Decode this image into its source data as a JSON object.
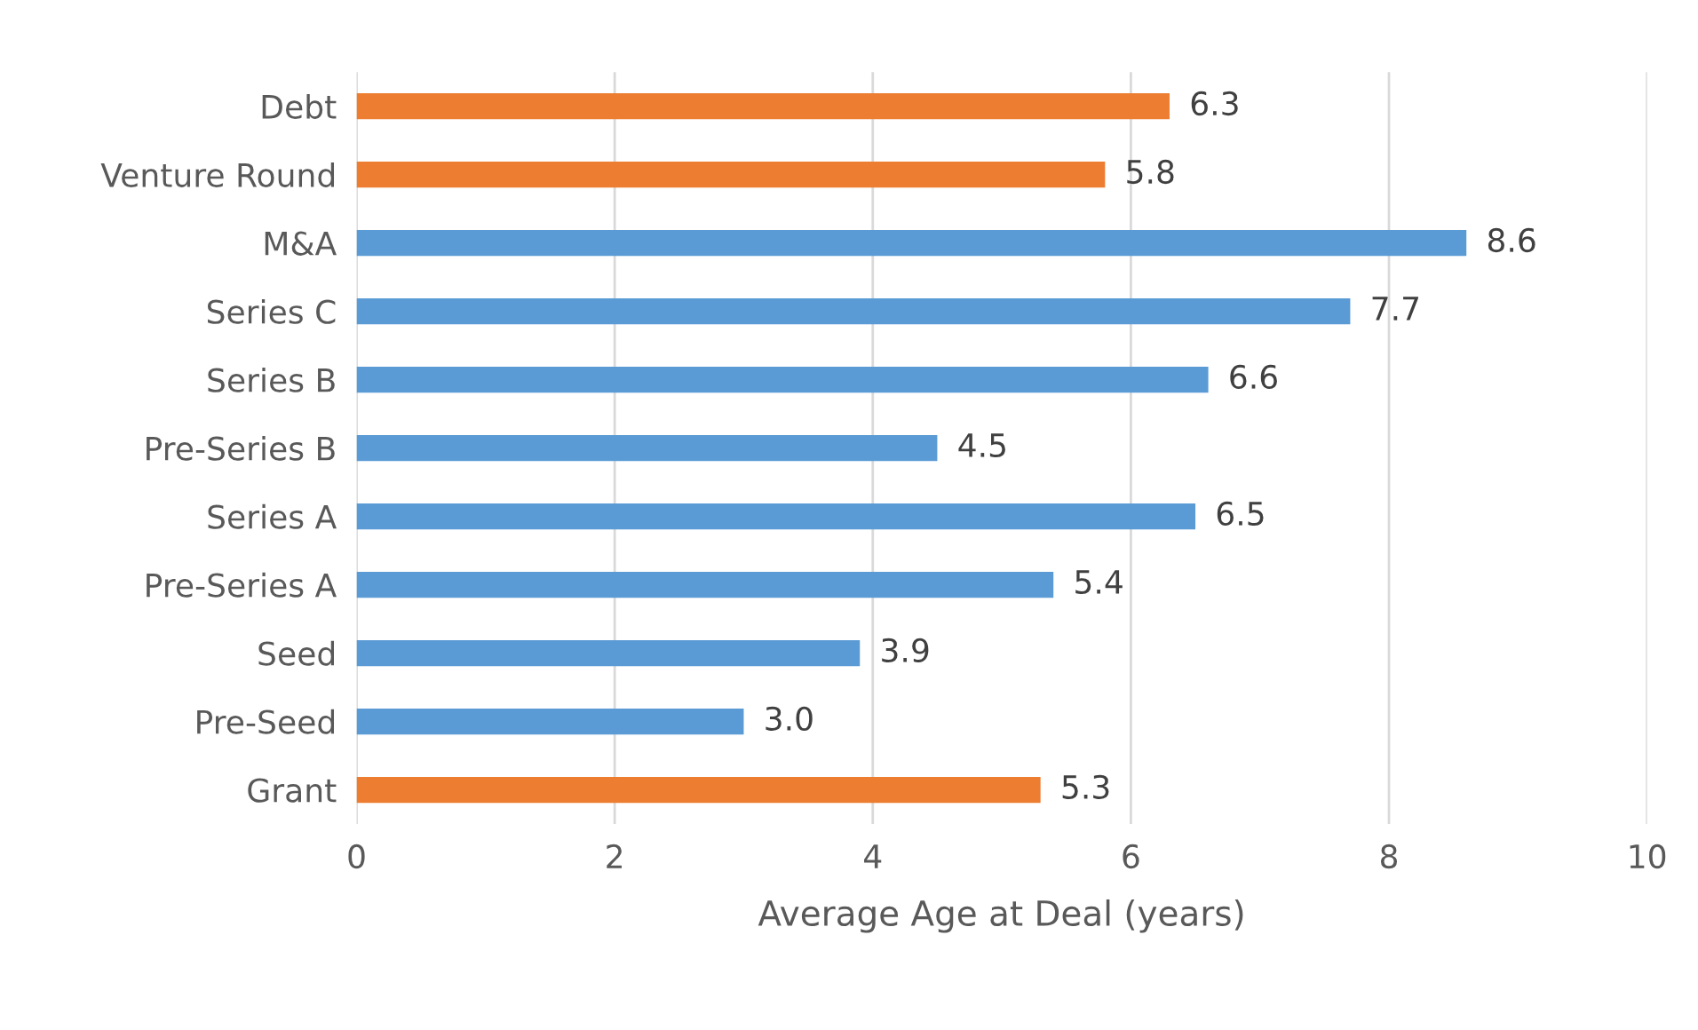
{
  "chart_data": {
    "type": "bar",
    "orientation": "horizontal",
    "xlabel": "Average Age at Deal (years)",
    "categories": [
      "Debt",
      "Venture Round",
      "M&A",
      "Series C",
      "Series B",
      "Pre-Series B",
      "Series A",
      "Pre-Series A",
      "Seed",
      "Pre-Seed",
      "Grant"
    ],
    "values": [
      6.3,
      5.8,
      8.6,
      7.7,
      6.6,
      4.5,
      6.5,
      5.4,
      3.9,
      3.0,
      5.3
    ],
    "colors": [
      "#ed7d31",
      "#ed7d31",
      "#5b9bd5",
      "#5b9bd5",
      "#5b9bd5",
      "#5b9bd5",
      "#5b9bd5",
      "#5b9bd5",
      "#5b9bd5",
      "#5b9bd5",
      "#ed7d31"
    ],
    "value_labels": [
      "6.3",
      "5.8",
      "8.6",
      "7.7",
      "6.6",
      "4.5",
      "6.5",
      "5.4",
      "3.9",
      "3.0",
      "5.3"
    ],
    "xlim": [
      0,
      10
    ],
    "xticks": [
      0,
      2,
      4,
      6,
      8,
      10
    ],
    "grid": "x"
  }
}
